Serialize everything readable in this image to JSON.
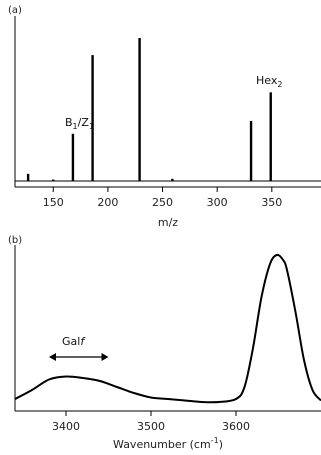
{
  "chart_data": [
    {
      "type": "bar",
      "panel_label": "(a)",
      "xlabel": "m/z",
      "xlim": [
        115,
        395
      ],
      "ylim": [
        0,
        1.0
      ],
      "grid": false,
      "xticks": [
        150,
        200,
        250,
        300,
        350
      ],
      "xtick_labels": [
        "150",
        "200",
        "250",
        "300",
        "350"
      ],
      "peaks": {
        "mz": [
          127,
          150,
          168,
          186,
          229,
          259,
          331,
          349
        ],
        "intensity": [
          0.05,
          0.01,
          0.33,
          0.88,
          1.0,
          0.015,
          0.42,
          0.62
        ]
      },
      "annotations": [
        {
          "text": "B",
          "sub": "1",
          "text2": "/Z",
          "sub2": "1",
          "mz": 168
        },
        {
          "text": "Hex",
          "sub": "2",
          "mz": 349
        }
      ]
    },
    {
      "type": "line",
      "panel_label": "(b)",
      "xlabel_main": "Wavenumber (cm",
      "xlabel_sup": "-1",
      "xlabel_end": ")",
      "xlim": [
        3340,
        3700
      ],
      "ylim": [
        0,
        1.0
      ],
      "grid": false,
      "xticks": [
        3400,
        3500,
        3600
      ],
      "xtick_labels": [
        "3400",
        "3500",
        "3600"
      ],
      "series": [
        {
          "x": [
            3340,
            3360,
            3380,
            3400,
            3420,
            3440,
            3460,
            3480,
            3500,
            3520,
            3540,
            3560,
            3580,
            3600,
            3610,
            3620,
            3630,
            3640,
            3648,
            3655,
            3660,
            3670,
            3680,
            3690,
            3700
          ],
          "y": [
            0.04,
            0.1,
            0.17,
            0.19,
            0.18,
            0.16,
            0.12,
            0.08,
            0.05,
            0.04,
            0.03,
            0.02,
            0.02,
            0.04,
            0.12,
            0.38,
            0.72,
            0.94,
            1.0,
            0.97,
            0.9,
            0.62,
            0.3,
            0.1,
            0.03
          ]
        }
      ],
      "annotation": {
        "text": "Gal",
        "italic": "f",
        "x_range": [
          3380,
          3450
        ]
      }
    }
  ]
}
